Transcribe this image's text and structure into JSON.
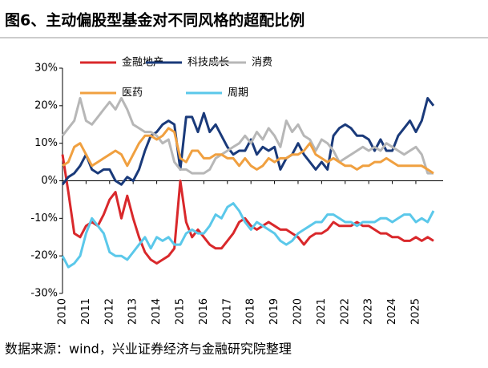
{
  "chart_data": {
    "type": "line",
    "title": "图6、主动偏股型基金对不同风格的超配比例",
    "source": "数据来源：wind，兴业证券经济与金融研究院整理",
    "categories": [
      "2010",
      null,
      null,
      null,
      "2011",
      null,
      null,
      null,
      "2012",
      null,
      null,
      null,
      "2013",
      null,
      null,
      null,
      "2014",
      null,
      null,
      null,
      "2015",
      null,
      null,
      null,
      "2016",
      null,
      null,
      null,
      "2017",
      null,
      null,
      null,
      "2018",
      null,
      null,
      null,
      "2019",
      null,
      null,
      null,
      "2020",
      null,
      null,
      null,
      "2021",
      null,
      null,
      null,
      "2022",
      null,
      null,
      null,
      "2023",
      null,
      null,
      null,
      "2024",
      null,
      null,
      null,
      "2025",
      null,
      null,
      null
    ],
    "series": [
      {
        "name": "金融地产",
        "color": "#d9282b",
        "values": [
          7,
          -3,
          -14,
          -15,
          -12,
          -11,
          -12,
          -9,
          -5,
          -3,
          -10,
          -4,
          -10,
          -15,
          -19,
          -21,
          -22,
          -21,
          -20,
          -18,
          0,
          -11,
          -15,
          -13,
          -15,
          -17,
          -18,
          -18,
          -16,
          -14,
          -11,
          -10,
          -12,
          -13,
          -12,
          -11,
          -12,
          -13,
          -13,
          -14,
          -15,
          -17,
          -15,
          -14,
          -14,
          -13,
          -11,
          -12,
          -12,
          -12,
          -11,
          -12,
          -12,
          -13,
          -14,
          -14,
          -15,
          -15,
          -16,
          -16,
          -15,
          -16,
          -15,
          -16
        ]
      },
      {
        "name": "科技成长",
        "color": "#1a3a7a",
        "values": [
          -1,
          1,
          2,
          4,
          7,
          3,
          2,
          3,
          3,
          0,
          -1,
          1,
          0,
          3,
          8,
          12,
          13,
          15,
          16,
          15,
          3,
          17,
          17,
          13,
          18,
          13,
          15,
          12,
          9,
          7,
          8,
          8,
          11,
          7,
          9,
          8,
          9,
          3,
          6,
          7,
          10,
          7,
          5,
          3,
          5,
          3,
          12,
          14,
          15,
          14,
          12,
          12,
          11,
          8,
          11,
          8,
          8,
          12,
          14,
          16,
          13,
          16,
          22,
          20
        ]
      },
      {
        "name": "消费",
        "color": "#b7b7b7",
        "values": [
          12,
          14,
          16,
          22,
          16,
          15,
          17,
          19,
          21,
          19,
          22,
          19,
          15,
          14,
          13,
          13,
          12,
          10,
          11,
          5,
          3,
          3,
          2,
          2,
          2,
          3,
          6,
          7,
          8,
          9,
          10,
          12,
          10,
          13,
          11,
          14,
          12,
          9,
          16,
          13,
          15,
          12,
          11,
          8,
          11,
          10,
          8,
          5,
          6,
          7,
          8,
          9,
          8,
          9,
          8,
          10,
          9,
          8,
          7,
          8,
          9,
          7,
          2,
          2
        ]
      },
      {
        "name": "医药",
        "color": "#f0a040",
        "values": [
          4,
          5,
          9,
          10,
          7,
          4,
          5,
          6,
          7,
          8,
          7,
          4,
          7,
          10,
          12,
          12,
          11,
          12,
          14,
          13,
          6,
          5,
          8,
          8,
          6,
          6,
          7,
          7,
          6,
          6,
          4,
          6,
          4,
          3,
          4,
          6,
          5,
          6,
          6,
          7,
          7,
          8,
          10,
          7,
          6,
          5,
          6,
          5,
          4,
          4,
          3,
          4,
          4,
          5,
          5,
          6,
          5,
          4,
          4,
          4,
          4,
          4,
          3,
          2
        ]
      },
      {
        "name": "周期",
        "color": "#5bc8ea",
        "values": [
          -20,
          -23,
          -22,
          -20,
          -14,
          -10,
          -12,
          -14,
          -19,
          -20,
          -20,
          -21,
          -19,
          -17,
          -15,
          -18,
          -15,
          -16,
          -15,
          -17,
          -17,
          -14,
          -13,
          -14,
          -14,
          -12,
          -9,
          -10,
          -7,
          -6,
          -8,
          -11,
          -13,
          -11,
          -12,
          -13,
          -14,
          -16,
          -17,
          -16,
          -14,
          -13,
          -12,
          -11,
          -11,
          -9,
          -9,
          -10,
          -11,
          -11,
          -12,
          -11,
          -11,
          -11,
          -10,
          -10,
          -11,
          -10,
          -9,
          -9,
          -11,
          -10,
          -11,
          -8
        ]
      }
    ],
    "ylim": [
      -30,
      30
    ],
    "yticks": [
      {
        "value": -30,
        "label": "-30%"
      },
      {
        "value": -20,
        "label": "-20%"
      },
      {
        "value": -10,
        "label": "-10%"
      },
      {
        "value": 0,
        "label": "0%"
      },
      {
        "value": 10,
        "label": "10%"
      },
      {
        "value": 20,
        "label": "20%"
      },
      {
        "value": 30,
        "label": "30%"
      }
    ],
    "grid": false
  }
}
